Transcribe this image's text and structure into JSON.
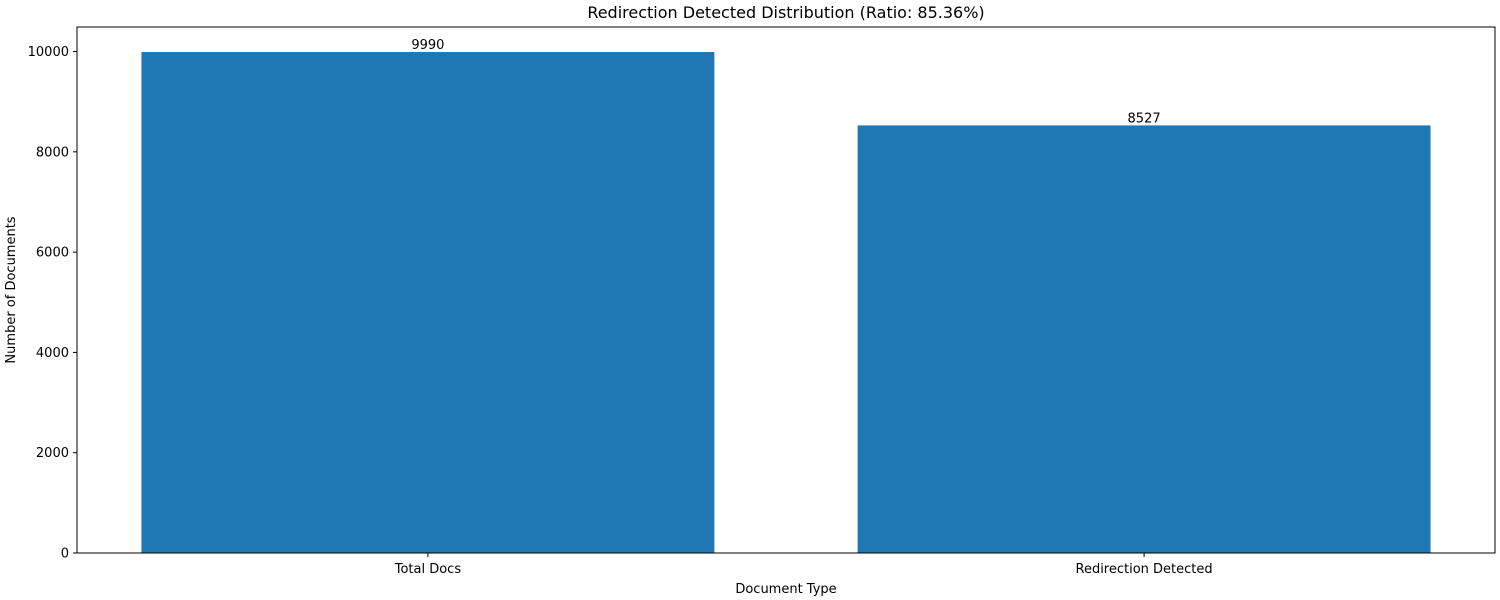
{
  "chart_data": {
    "type": "bar",
    "title": "Redirection Detected Distribution (Ratio: 85.36%)",
    "xlabel": "Document Type",
    "ylabel": "Number of Documents",
    "categories": [
      "Total Docs",
      "Redirection Detected"
    ],
    "values": [
      9990,
      8527
    ],
    "data_labels": [
      "9990",
      "8527"
    ],
    "ylim": [
      0,
      10489.5
    ],
    "yticks": [
      0,
      2000,
      4000,
      6000,
      8000,
      10000
    ],
    "ytick_labels": [
      "0",
      "2000",
      "4000",
      "6000",
      "8000",
      "10000"
    ],
    "grid": false,
    "legend": "none",
    "bar_color": "#1f77b4"
  }
}
